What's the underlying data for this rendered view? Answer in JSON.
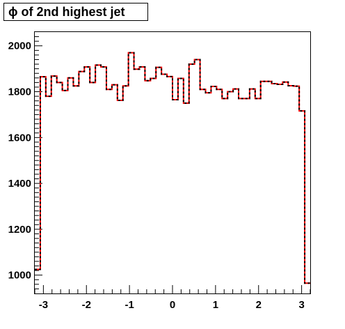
{
  "chart_data": {
    "type": "histogram",
    "title": "ϕ of 2nd highest jet",
    "xlabel": "",
    "ylabel": "",
    "xlim": [
      -3.2,
      3.2
    ],
    "ylim": [
      920,
      2060
    ],
    "x_ticks": [
      -3,
      -2,
      -1,
      0,
      1,
      2,
      3
    ],
    "x_tick_labels": [
      "-3",
      "-2",
      "-1",
      "0",
      "1",
      "2",
      "3"
    ],
    "y_ticks": [
      1000,
      1200,
      1400,
      1600,
      1800,
      2000
    ],
    "y_tick_labels": [
      "1000",
      "1200",
      "1400",
      "1600",
      "1800",
      "2000"
    ],
    "bin_edges_start": -3.2,
    "bin_width": 0.128,
    "values": [
      1025,
      1865,
      1780,
      1868,
      1840,
      1805,
      1860,
      1825,
      1888,
      1908,
      1840,
      1916,
      1908,
      1810,
      1830,
      1762,
      1825,
      1970,
      1898,
      1908,
      1848,
      1858,
      1906,
      1876,
      1866,
      1765,
      1858,
      1750,
      1920,
      1940,
      1810,
      1795,
      1823,
      1810,
      1770,
      1800,
      1812,
      1770,
      1770,
      1812,
      1770,
      1845,
      1845,
      1835,
      1832,
      1842,
      1826,
      1824,
      1716,
      965
    ],
    "series": [
      {
        "style": "solid",
        "color": "#ff0000"
      },
      {
        "style": "dashed",
        "color": "#000000"
      }
    ],
    "grid": false,
    "legend": "none"
  }
}
